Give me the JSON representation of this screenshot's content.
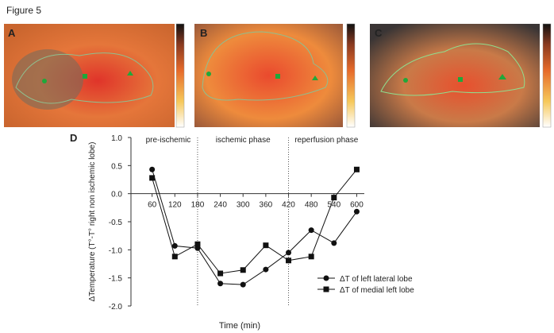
{
  "figure_label": "Figure 5",
  "panels": [
    "A",
    "B",
    "C"
  ],
  "chart_data": {
    "type": "line",
    "panel_label": "D",
    "x_label": "Time (min)",
    "y_label": "ΔTemperature (T°-T° right non ischemic lobe)",
    "phases": [
      "pre-ischemic",
      "ischemic phase",
      "reperfusion phase"
    ],
    "phase_dividers": [
      180,
      420
    ],
    "x": [
      60,
      120,
      180,
      240,
      300,
      360,
      420,
      480,
      540,
      600
    ],
    "xlim": [
      0,
      620
    ],
    "xticks": [
      60,
      120,
      180,
      240,
      300,
      360,
      420,
      480,
      540,
      600
    ],
    "ylim": [
      -2,
      1
    ],
    "yticks": [
      {
        "value": -2,
        "label": "-2.0"
      },
      {
        "value": -1.5,
        "label": "-1.5"
      },
      {
        "value": -1,
        "label": "-1.0"
      },
      {
        "value": -0.5,
        "label": "-0.5"
      },
      {
        "value": 0,
        "label": "0.0"
      },
      {
        "value": 0.5,
        "label": "0.5"
      },
      {
        "value": 1,
        "label": "1.0"
      }
    ],
    "legend": "lower right",
    "series": [
      {
        "name": "ΔT of left lateral lobe",
        "marker": "circle",
        "color": "#111111",
        "values": [
          0.43,
          -0.93,
          -0.97,
          -1.6,
          -1.62,
          -1.35,
          -1.05,
          -0.65,
          -0.88,
          -0.32
        ]
      },
      {
        "name": "ΔT of medial left lobe",
        "marker": "square",
        "color": "#111111",
        "values": [
          0.28,
          -1.12,
          -0.9,
          -1.42,
          -1.36,
          -0.92,
          -1.19,
          -1.12,
          -0.07,
          0.43
        ]
      }
    ]
  }
}
